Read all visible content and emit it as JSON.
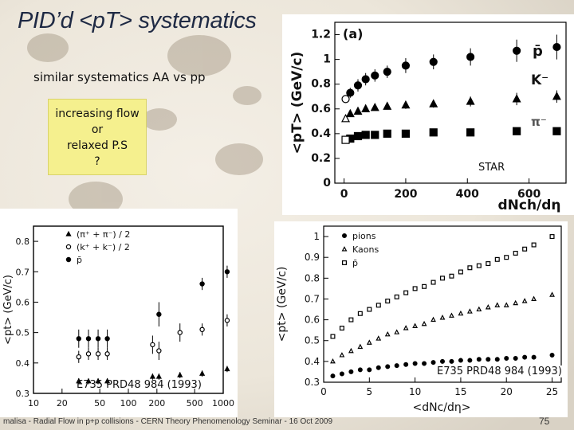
{
  "slide": {
    "title": "PID’d <pT> systematics",
    "subtitle": "similar systematics AA vs pp",
    "note_lines": [
      "increasing flow",
      "or",
      "relaxed P.S",
      "?"
    ],
    "footer": "malisa - Radial Flow in p+p collisions - CERN Theory Phenomenology Seminar - 16 Oct 2009",
    "page_number": "75",
    "label_star": "STAR",
    "label_e735_left": "E735 PRD48 984 (1993)",
    "label_e735_right": "E735 PRD48 984 (1993)"
  },
  "chart_data": [
    {
      "type": "scatter",
      "panel": "star",
      "panel_label": "(a)",
      "xlabel": "dNch/dη",
      "ylabel": "<pT> (GeV/c)",
      "xlim": [
        -30,
        720
      ],
      "ylim": [
        0,
        1.3
      ],
      "x_ticks": [
        0,
        200,
        400,
        600
      ],
      "y_ticks": [
        0,
        0.2,
        0.4,
        0.6,
        0.8,
        1,
        1.2
      ],
      "series_labels": [
        "p̄",
        "K⁻",
        "π⁻"
      ],
      "colors": {
        "marker": "#000000",
        "inset_points": "#333333"
      },
      "series": [
        {
          "name": "p̄",
          "marker": "circle",
          "x": [
            20,
            45,
            70,
            100,
            140,
            200,
            290,
            410,
            560,
            690
          ],
          "y": [
            0.73,
            0.79,
            0.84,
            0.87,
            0.9,
            0.95,
            0.98,
            1.02,
            1.07,
            1.1
          ],
          "err": [
            0.04,
            0.05,
            0.05,
            0.05,
            0.05,
            0.06,
            0.06,
            0.07,
            0.09,
            0.1
          ]
        },
        {
          "name": "K⁻",
          "marker": "triangle",
          "x": [
            20,
            45,
            70,
            100,
            140,
            200,
            290,
            410,
            560,
            690
          ],
          "y": [
            0.56,
            0.58,
            0.6,
            0.61,
            0.62,
            0.63,
            0.64,
            0.66,
            0.68,
            0.7
          ],
          "err": [
            0.02,
            0.02,
            0.02,
            0.02,
            0.02,
            0.03,
            0.03,
            0.04,
            0.05,
            0.05
          ]
        },
        {
          "name": "π⁻",
          "marker": "square",
          "x": [
            20,
            45,
            70,
            100,
            140,
            200,
            290,
            410,
            560,
            690
          ],
          "y": [
            0.36,
            0.38,
            0.39,
            0.39,
            0.4,
            0.4,
            0.41,
            0.41,
            0.42,
            0.42
          ],
          "err": [
            0.01,
            0.01,
            0.01,
            0.01,
            0.01,
            0.01,
            0.01,
            0.01,
            0.01,
            0.01
          ]
        },
        {
          "name": "",
          "marker": "open-circle",
          "x": [
            5
          ],
          "y": [
            0.68
          ],
          "err": [
            0
          ]
        },
        {
          "name": "",
          "marker": "open-triangle",
          "x": [
            5
          ],
          "y": [
            0.52
          ],
          "err": [
            0
          ]
        },
        {
          "name": "",
          "marker": "open-square",
          "x": [
            5
          ],
          "y": [
            0.35
          ],
          "err": [
            0
          ]
        }
      ]
    },
    {
      "type": "scatter",
      "panel": "e735-left",
      "xlabel": "",
      "ylabel": "<pt> (GeV/c)",
      "xlim": [
        10,
        1000
      ],
      "x_scale": "log",
      "ylim": [
        0.3,
        0.85
      ],
      "x_ticks": [
        10,
        20,
        50,
        100,
        200,
        500,
        1000
      ],
      "y_ticks": [
        0.3,
        0.4,
        0.5,
        0.6,
        0.7,
        0.8
      ],
      "legend": [
        "(π⁺ + π⁻) / 2",
        "(k⁺ + k⁻) / 2",
        "p̄"
      ],
      "series": [
        {
          "name": "(π⁺ + π⁻) / 2",
          "marker": "triangle",
          "x": [
            30,
            38,
            48,
            60,
            180,
            210,
            350,
            600,
            1100
          ],
          "y": [
            0.34,
            0.34,
            0.34,
            0.34,
            0.355,
            0.355,
            0.36,
            0.365,
            0.38
          ],
          "err": [
            0.01,
            0.01,
            0.01,
            0.01,
            0.01,
            0.01,
            0.01,
            0.01,
            0.01
          ]
        },
        {
          "name": "(k⁺ + k⁻) / 2",
          "marker": "open-circle",
          "x": [
            30,
            38,
            48,
            60,
            180,
            210,
            350,
            600,
            1100
          ],
          "y": [
            0.42,
            0.43,
            0.43,
            0.43,
            0.46,
            0.44,
            0.5,
            0.51,
            0.54
          ],
          "err": [
            0.02,
            0.02,
            0.02,
            0.02,
            0.03,
            0.03,
            0.03,
            0.02,
            0.02
          ]
        },
        {
          "name": "p̄",
          "marker": "circle",
          "x": [
            30,
            38,
            48,
            60,
            210,
            600,
            1100
          ],
          "y": [
            0.48,
            0.48,
            0.48,
            0.48,
            0.56,
            0.66,
            0.7
          ],
          "err": [
            0.03,
            0.03,
            0.03,
            0.03,
            0.04,
            0.02,
            0.02
          ]
        }
      ]
    },
    {
      "type": "scatter",
      "panel": "e735-right",
      "xlabel": "<dNc/dη>",
      "ylabel": "<pt> (GeV/c)",
      "xlim": [
        0,
        26
      ],
      "ylim": [
        0.3,
        1.05
      ],
      "x_ticks": [
        0,
        5,
        10,
        15,
        20,
        25
      ],
      "y_ticks": [
        0.3,
        0.4,
        0.5,
        0.6,
        0.7,
        0.8,
        0.9,
        1.0
      ],
      "legend": [
        "pions",
        "Kaons",
        "p̄"
      ],
      "series": [
        {
          "name": "pions",
          "marker": "circle",
          "x": [
            1,
            2,
            3,
            4,
            5,
            6,
            7,
            8,
            9,
            10,
            11,
            12,
            13,
            14,
            15,
            16,
            17,
            18,
            19,
            20,
            21,
            22,
            23,
            25
          ],
          "y": [
            0.33,
            0.34,
            0.35,
            0.36,
            0.36,
            0.37,
            0.375,
            0.38,
            0.385,
            0.39,
            0.39,
            0.395,
            0.4,
            0.4,
            0.405,
            0.405,
            0.41,
            0.41,
            0.41,
            0.415,
            0.415,
            0.42,
            0.42,
            0.43
          ]
        },
        {
          "name": "Kaons",
          "marker": "open-triangle",
          "x": [
            1,
            2,
            3,
            4,
            5,
            6,
            7,
            8,
            9,
            10,
            11,
            12,
            13,
            14,
            15,
            16,
            17,
            18,
            19,
            20,
            21,
            22,
            23,
            25
          ],
          "y": [
            0.4,
            0.43,
            0.45,
            0.47,
            0.49,
            0.51,
            0.53,
            0.54,
            0.56,
            0.57,
            0.58,
            0.6,
            0.61,
            0.62,
            0.63,
            0.64,
            0.65,
            0.66,
            0.67,
            0.67,
            0.68,
            0.69,
            0.7,
            0.72
          ]
        },
        {
          "name": "p̄",
          "marker": "open-square",
          "x": [
            1,
            2,
            3,
            4,
            5,
            6,
            7,
            8,
            9,
            10,
            11,
            12,
            13,
            14,
            15,
            16,
            17,
            18,
            19,
            20,
            21,
            22,
            23,
            25
          ],
          "y": [
            0.52,
            0.56,
            0.6,
            0.63,
            0.65,
            0.67,
            0.69,
            0.71,
            0.73,
            0.75,
            0.76,
            0.78,
            0.8,
            0.81,
            0.83,
            0.85,
            0.86,
            0.87,
            0.89,
            0.9,
            0.92,
            0.94,
            0.96,
            1.0
          ]
        }
      ]
    }
  ]
}
